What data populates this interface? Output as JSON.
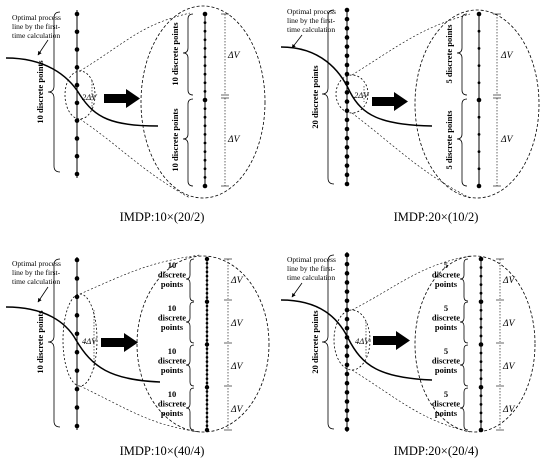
{
  "panels": [
    {
      "id": "p1",
      "caption": "IMDP:10×(20/2)",
      "process_line_label": [
        "Optimal process",
        "line by the first-",
        "time calculation"
      ],
      "left_label": "10 discrete points",
      "zoom_label": "2ΔV",
      "right_groups": [
        "10 discrete points",
        "10 discrete points"
      ],
      "right_dv": [
        "ΔV",
        "ΔV"
      ]
    },
    {
      "id": "p2",
      "caption": "IMDP:20×(10/2)",
      "process_line_label": [
        "Optimal process",
        "line by the first-",
        "time calculation"
      ],
      "left_label": "20 discrete points",
      "zoom_label": "2ΔV",
      "right_groups": [
        "5 discrete points",
        "5 discrete points"
      ],
      "right_dv": [
        "ΔV",
        "ΔV"
      ]
    },
    {
      "id": "p3",
      "caption": "IMDP:10×(40/4)",
      "process_line_label": [
        "Optimal process",
        "line by the first-",
        "time calculation"
      ],
      "left_label": "10 discrete points",
      "zoom_label": "4ΔV",
      "right_groups": [
        "10 discrete points",
        "10 discrete points",
        "10 discrete points",
        "10 discrete points"
      ],
      "right_dv": [
        "ΔV",
        "ΔV",
        "ΔV",
        "ΔV"
      ]
    },
    {
      "id": "p4",
      "caption": "IMDP:20×(20/4)",
      "process_line_label": [
        "Optimal process",
        "line by the first-",
        "time calculation"
      ],
      "left_label": "20 discrete points",
      "zoom_label": "4ΔV",
      "right_groups": [
        "5 discrete points",
        "5 discrete points",
        "5 discrete points",
        "5 discrete points"
      ],
      "right_dv": [
        "ΔV",
        "ΔV",
        "ΔV",
        "ΔV"
      ]
    }
  ]
}
